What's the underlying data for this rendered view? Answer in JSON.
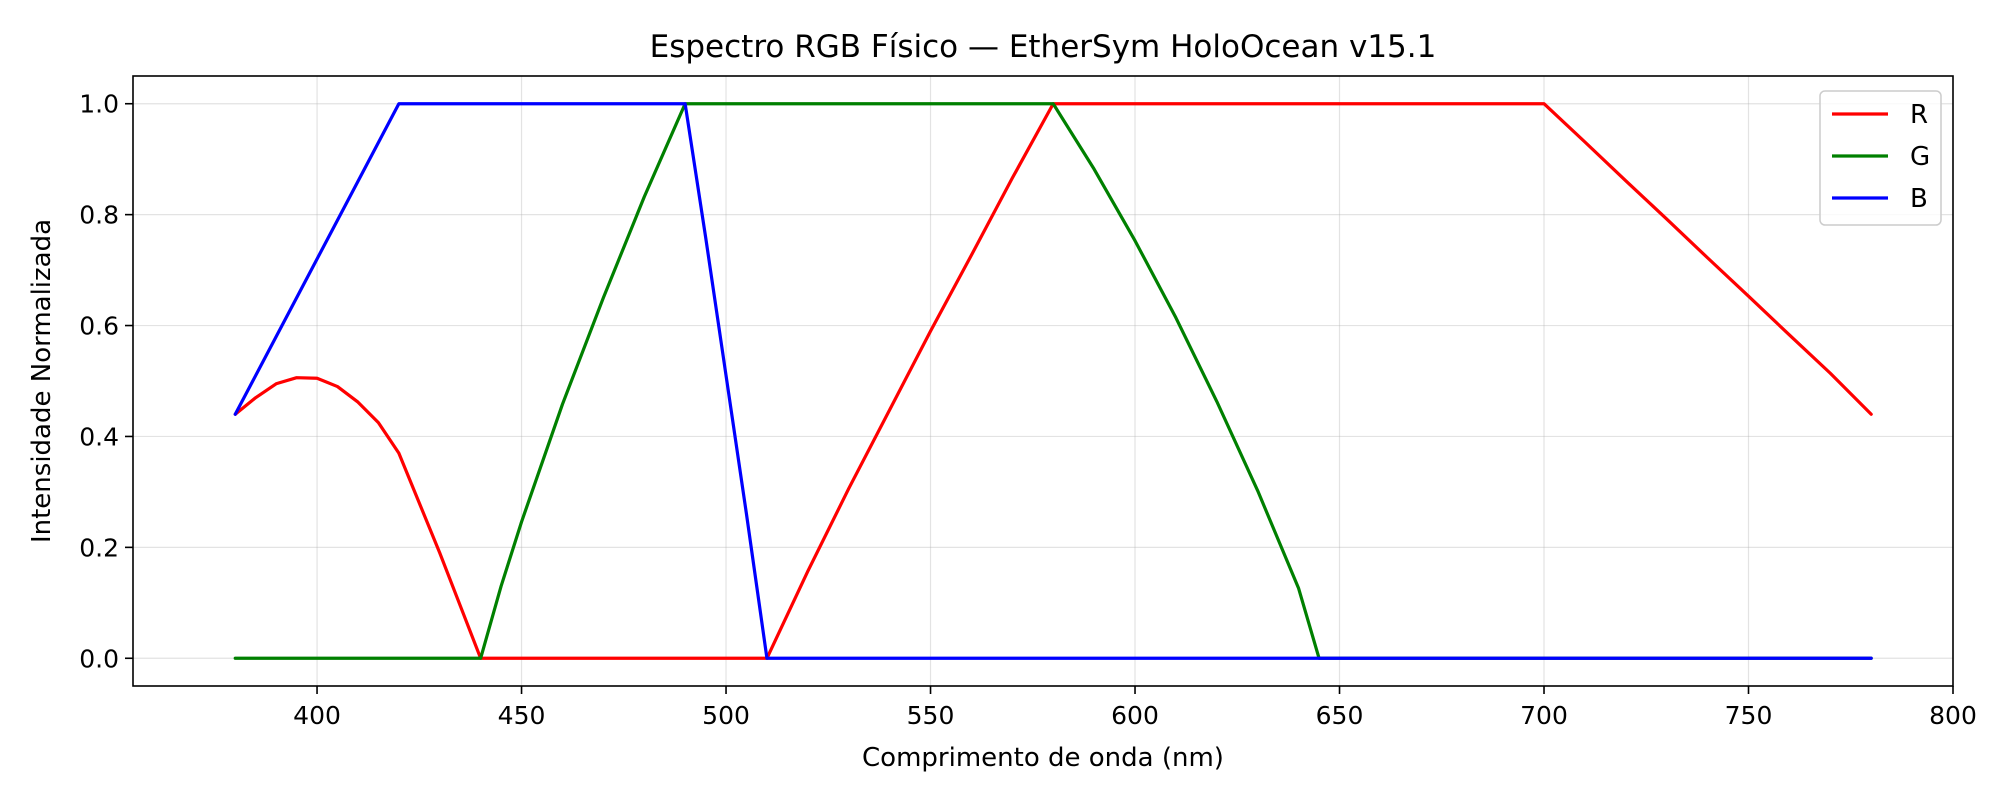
{
  "chart_data": {
    "type": "line",
    "title": "Espectro RGB Físico — EtherSym HoloOcean v15.1",
    "xlabel": "Comprimento de onda (nm)",
    "ylabel": "Intensidade Normalizada",
    "xlim": [
      355,
      800
    ],
    "ylim": [
      -0.05,
      1.05
    ],
    "xticks": [
      400,
      450,
      500,
      550,
      600,
      650,
      700,
      750,
      800
    ],
    "xtick_labels": [
      "400",
      "450",
      "500",
      "550",
      "600",
      "650",
      "700",
      "750",
      "800"
    ],
    "yticks": [
      0.0,
      0.2,
      0.4,
      0.6,
      0.8,
      1.0
    ],
    "ytick_labels": [
      "0.0",
      "0.2",
      "0.4",
      "0.6",
      "0.8",
      "1.0"
    ],
    "grid": true,
    "legend_position": "top-right",
    "series": [
      {
        "name": "R",
        "color": "#ff0000",
        "x": [
          380,
          385,
          390,
          395,
          400,
          405,
          410,
          415,
          420,
          425,
          430,
          435,
          440,
          450,
          460,
          470,
          480,
          490,
          500,
          510,
          520,
          530,
          540,
          550,
          560,
          570,
          580,
          590,
          600,
          650,
          700,
          710,
          720,
          730,
          740,
          750,
          760,
          770,
          780
        ],
        "y": [
          0.44,
          0.47,
          0.495,
          0.506,
          0.505,
          0.49,
          0.462,
          0.425,
          0.37,
          0.28,
          0.19,
          0.095,
          0.0,
          0.0,
          0.0,
          0.0,
          0.0,
          0.0,
          0.0,
          0.0,
          0.157,
          0.306,
          0.448,
          0.59,
          0.727,
          0.866,
          1.0,
          1.0,
          1.0,
          1.0,
          1.0,
          0.931,
          0.861,
          0.792,
          0.722,
          0.653,
          0.583,
          0.514,
          0.44
        ]
      },
      {
        "name": "G",
        "color": "#008000",
        "x": [
          380,
          400,
          420,
          440,
          445,
          450,
          460,
          470,
          480,
          490,
          500,
          550,
          580,
          590,
          600,
          610,
          620,
          630,
          640,
          645,
          650,
          700,
          750,
          780
        ],
        "y": [
          0.0,
          0.0,
          0.0,
          0.0,
          0.13,
          0.246,
          0.458,
          0.65,
          0.832,
          1.0,
          1.0,
          1.0,
          1.0,
          0.882,
          0.753,
          0.614,
          0.463,
          0.302,
          0.126,
          0.0,
          0.0,
          0.0,
          0.0,
          0.0
        ]
      },
      {
        "name": "B",
        "color": "#0000ff",
        "x": [
          380,
          390,
          400,
          410,
          420,
          430,
          450,
          470,
          490,
          495,
          500,
          505,
          510,
          520,
          550,
          600,
          650,
          700,
          750,
          780
        ],
        "y": [
          0.44,
          0.58,
          0.72,
          0.86,
          1.0,
          1.0,
          1.0,
          1.0,
          1.0,
          0.76,
          0.51,
          0.26,
          0.0,
          0.0,
          0.0,
          0.0,
          0.0,
          0.0,
          0.0,
          0.0
        ]
      }
    ]
  }
}
